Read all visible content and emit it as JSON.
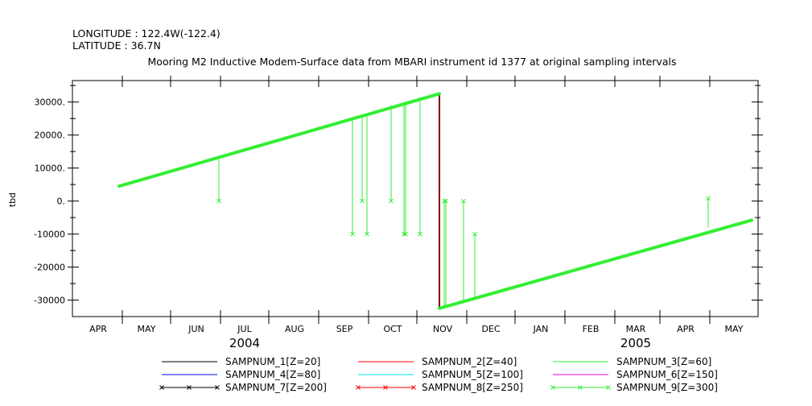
{
  "header": {
    "longitude": "LONGITUDE : 122.4W(-122.4)",
    "latitude": "LATITUDE : 36.7N"
  },
  "chart_data": {
    "type": "line",
    "title": "Mooring M2 Inductive Modem-Surface data from MBARI instrument id 1377 at original sampling intervals",
    "xlabel": "",
    "ylabel": "tbd",
    "xlim": [
      "2004-03-16",
      "2005-05-16"
    ],
    "ylim": [
      -35000,
      36500
    ],
    "y_ticks": [
      30000,
      20000,
      10000,
      0,
      -10000,
      -20000,
      -30000
    ],
    "y_tick_labels": [
      "30000.",
      "20000.",
      "10000.",
      "0.",
      "-10000",
      "-20000",
      "-30000"
    ],
    "x_ticks": [
      {
        "date": "2004-04-01",
        "label": "APR"
      },
      {
        "date": "2004-05-01",
        "label": "MAY"
      },
      {
        "date": "2004-06-01",
        "label": "JUN"
      },
      {
        "date": "2004-07-01",
        "label": "JUL"
      },
      {
        "date": "2004-08-01",
        "label": "AUG"
      },
      {
        "date": "2004-09-01",
        "label": "SEP"
      },
      {
        "date": "2004-10-01",
        "label": "OCT"
      },
      {
        "date": "2004-11-01",
        "label": "NOV"
      },
      {
        "date": "2004-12-01",
        "label": "DEC"
      },
      {
        "date": "2005-01-01",
        "label": "JAN"
      },
      {
        "date": "2005-02-01",
        "label": "FEB"
      },
      {
        "date": "2005-03-01",
        "label": "MAR"
      },
      {
        "date": "2005-04-01",
        "label": "APR"
      },
      {
        "date": "2005-05-01",
        "label": "MAY"
      }
    ],
    "year_labels": [
      {
        "date": "2004-07-01",
        "label": "2004"
      },
      {
        "date": "2005-03-01",
        "label": "2005"
      }
    ],
    "series": [
      {
        "name": "SAMPNUM_1[Z=20]",
        "color": "#000000",
        "marker": "none",
        "points": []
      },
      {
        "name": "SAMPNUM_2[Z=40]",
        "color": "#ff0000",
        "marker": "none",
        "points": [
          [
            "2004-10-30",
            32500
          ],
          [
            "2004-10-30",
            -32500
          ]
        ]
      },
      {
        "name": "SAMPNUM_3[Z=60]",
        "color": "#33ee33",
        "marker": "none",
        "points": []
      },
      {
        "name": "SAMPNUM_4[Z=80]",
        "color": "#0000ff",
        "marker": "none",
        "points": []
      },
      {
        "name": "SAMPNUM_5[Z=100]",
        "color": "#00e0e0",
        "marker": "none",
        "points": []
      },
      {
        "name": "SAMPNUM_6[Z=150]",
        "color": "#e000e0",
        "marker": "none",
        "points": []
      },
      {
        "name": "SAMPNUM_7[Z=200]",
        "color": "#000000",
        "marker": "x",
        "points": [
          [
            "2004-10-30",
            32500
          ],
          [
            "2004-10-30",
            -32500
          ]
        ]
      },
      {
        "name": "SAMPNUM_8[Z=250]",
        "color": "#ff0000",
        "marker": "x",
        "points": []
      },
      {
        "name": "SAMPNUM_9[Z=300]",
        "color": "#33ee33",
        "marker": "x",
        "segments": [
          [
            [
              "2004-04-14",
              4500
            ],
            [
              "2004-10-30",
              32500
            ]
          ],
          [
            [
              "2004-10-30",
              -32500
            ],
            [
              "2005-05-12",
              -5800
            ]
          ]
        ],
        "spikes": [
          [
            "2004-06-15",
            13000,
            0
          ],
          [
            "2004-09-06",
            25000,
            -10000
          ],
          [
            "2004-09-12",
            25500,
            0
          ],
          [
            "2004-09-15",
            26000,
            -10000
          ],
          [
            "2004-09-30",
            29000,
            0
          ],
          [
            "2004-10-08",
            30000,
            -10000
          ],
          [
            "2004-10-09",
            30200,
            -10000
          ],
          [
            "2004-10-18",
            31500,
            -10000
          ],
          [
            "2004-11-02",
            -32000,
            0
          ],
          [
            "2004-11-03",
            -32000,
            0
          ],
          [
            "2004-11-14",
            -31000,
            0
          ],
          [
            "2004-11-21",
            -29500,
            -10000
          ],
          [
            "2005-04-15",
            -8000,
            800
          ]
        ]
      }
    ],
    "legend": "bottom",
    "grid": false
  }
}
